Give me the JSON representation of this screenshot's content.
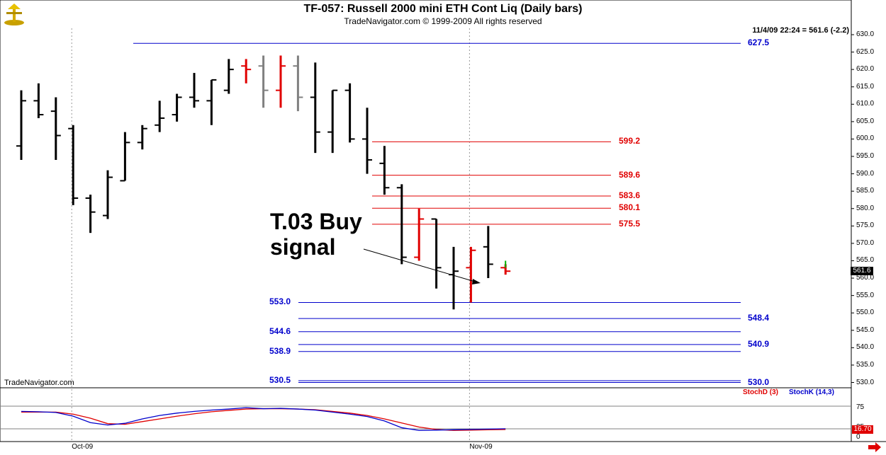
{
  "header": {
    "title": "TF-057:  Russell 2000 mini ETH Cont Liq  (Daily bars)",
    "subtitle": "TradeNavigator.com © 1999-2009 All rights reserved",
    "readout": "11/4/09 22:24 = 561.6 (-2.2)",
    "watermark": "TradeNavigator.com"
  },
  "annotation": {
    "line1": "T.03 Buy",
    "line2": "signal"
  },
  "last_price_label": "561.6",
  "indicator": {
    "stochd_label": "StochD (3)",
    "stochk_label": "StochK (14,3)",
    "level_75": "75",
    "level_25": "25",
    "current_value": "16.70",
    "zero_label": "0"
  },
  "colors": {
    "red": "#e00000",
    "blue": "#0000cc",
    "gray": "#808080",
    "black": "#000000"
  },
  "chart_data": {
    "type": "ohlc",
    "title": "TF-057:  Russell 2000 mini ETH Cont Liq  (Daily bars)",
    "ylim": [
      525,
      632
    ],
    "y_ticks": [
      530,
      535,
      540,
      545,
      550,
      555,
      560,
      565,
      570,
      575,
      580,
      585,
      590,
      595,
      600,
      605,
      610,
      615,
      620,
      625,
      630
    ],
    "x_labels": [
      {
        "bar": 3,
        "label": "Oct-09"
      },
      {
        "bar": 26,
        "label": "Nov-09"
      }
    ],
    "grid": "vertical dotted lines at month starts",
    "bars": [
      {
        "o": 598,
        "h": 614,
        "l": 594,
        "c": 611,
        "color": "black"
      },
      {
        "o": 611,
        "h": 616,
        "l": 606,
        "c": 607,
        "color": "black"
      },
      {
        "o": 608,
        "h": 612,
        "l": 594,
        "c": 601,
        "color": "black"
      },
      {
        "o": 603,
        "h": 604,
        "l": 581,
        "c": 583,
        "color": "black"
      },
      {
        "o": 583,
        "h": 584,
        "l": 573,
        "c": 579,
        "color": "black"
      },
      {
        "o": 578,
        "h": 591,
        "l": 577,
        "c": 589,
        "color": "black"
      },
      {
        "o": 588,
        "h": 602,
        "l": 588,
        "c": 599,
        "color": "black"
      },
      {
        "o": 599,
        "h": 604,
        "l": 597,
        "c": 603,
        "color": "black"
      },
      {
        "o": 604,
        "h": 611,
        "l": 602,
        "c": 606,
        "color": "black"
      },
      {
        "o": 607,
        "h": 613,
        "l": 605,
        "c": 612,
        "color": "black"
      },
      {
        "o": 612,
        "h": 619,
        "l": 609,
        "c": 611,
        "color": "black"
      },
      {
        "o": 611,
        "h": 617,
        "l": 604,
        "c": 617,
        "color": "black"
      },
      {
        "o": 614,
        "h": 623,
        "l": 613,
        "c": 620,
        "color": "black"
      },
      {
        "o": 621,
        "h": 623,
        "l": 616,
        "c": 620,
        "color": "red"
      },
      {
        "o": 621,
        "h": 624,
        "l": 609,
        "c": 614,
        "color": "gray"
      },
      {
        "o": 614,
        "h": 624,
        "l": 609,
        "c": 621,
        "color": "red"
      },
      {
        "o": 621,
        "h": 624,
        "l": 608,
        "c": 612,
        "color": "gray"
      },
      {
        "o": 612,
        "h": 622,
        "l": 596,
        "c": 602,
        "color": "black"
      },
      {
        "o": 602,
        "h": 614,
        "l": 596,
        "c": 614,
        "color": "black"
      },
      {
        "o": 614,
        "h": 616,
        "l": 599,
        "c": 600,
        "color": "black"
      },
      {
        "o": 600,
        "h": 609,
        "l": 590,
        "c": 594,
        "color": "black"
      },
      {
        "o": 593,
        "h": 598,
        "l": 584,
        "c": 586,
        "color": "black"
      },
      {
        "o": 586,
        "h": 587,
        "l": 564,
        "c": 566,
        "color": "black"
      },
      {
        "o": 566,
        "h": 580,
        "l": 565,
        "c": 577,
        "color": "red"
      },
      {
        "o": 577,
        "h": 577,
        "l": 557,
        "c": 563,
        "color": "black"
      },
      {
        "o": 561,
        "h": 569,
        "l": 551,
        "c": 562,
        "color": "black"
      },
      {
        "o": 563,
        "h": 569,
        "l": 553,
        "c": 568,
        "color": "red"
      },
      {
        "o": 569,
        "h": 575,
        "l": 560,
        "c": 564,
        "color": "black"
      },
      {
        "o": 563,
        "h": 564,
        "l": 561,
        "c": 562,
        "color": "red"
      }
    ],
    "levels": [
      {
        "value": 627.5,
        "label": "627.5",
        "color": "blue"
      },
      {
        "value": 599.2,
        "label": "599.2",
        "color": "red"
      },
      {
        "value": 589.6,
        "label": "589.6",
        "color": "red"
      },
      {
        "value": 583.6,
        "label": "583.6",
        "color": "red"
      },
      {
        "value": 580.1,
        "label": "580.1",
        "color": "red"
      },
      {
        "value": 575.5,
        "label": "575.5",
        "color": "red"
      },
      {
        "value": 553.0,
        "label": "553.0",
        "color": "blue"
      },
      {
        "value": 548.4,
        "label": "548.4",
        "color": "blue"
      },
      {
        "value": 544.6,
        "label": "544.6",
        "color": "blue"
      },
      {
        "value": 540.9,
        "label": "540.9",
        "color": "blue"
      },
      {
        "value": 538.9,
        "label": "538.9",
        "color": "blue"
      },
      {
        "value": 530.5,
        "label": "530.5",
        "color": "blue"
      },
      {
        "value": 530.0,
        "label": "530.0",
        "color": "blue"
      }
    ],
    "stochastic": {
      "ylim": [
        0,
        100
      ],
      "stochK": [
        70,
        69,
        67,
        56,
        37,
        30,
        35,
        48,
        58,
        65,
        70,
        74,
        77,
        81,
        78,
        79,
        77,
        74,
        68,
        62,
        55,
        42,
        22,
        14,
        15,
        16,
        17,
        18,
        19
      ],
      "stochD": [
        68,
        68,
        68,
        62,
        50,
        34,
        32,
        40,
        48,
        56,
        63,
        69,
        73,
        77,
        78,
        78,
        77,
        75,
        70,
        65,
        58,
        48,
        36,
        24,
        17,
        14,
        15,
        16,
        16.7
      ]
    }
  }
}
